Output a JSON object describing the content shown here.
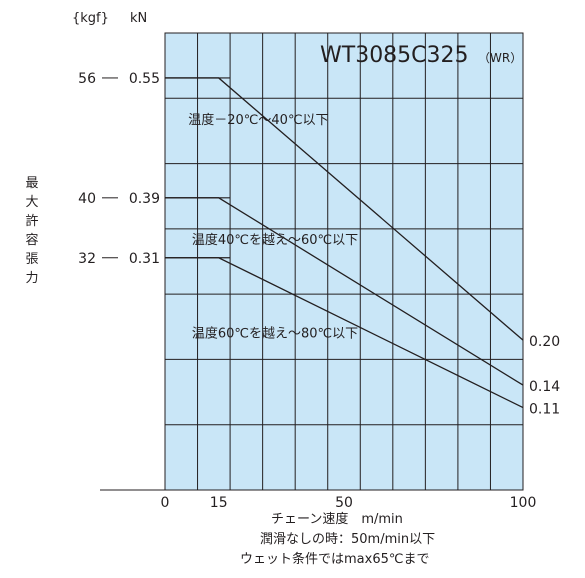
{
  "chart_data": {
    "type": "line",
    "title": "WT3085C325",
    "title_suffix": "（WR）",
    "xlabel": "チェーン速度　m/min",
    "ylabel": "最大許容張力",
    "y_unit_kgf": "{kgf}",
    "y_unit_kn": "kN",
    "xlim": [
      0,
      100
    ],
    "x_ticks": [
      "0",
      "15",
      "50",
      "100"
    ],
    "x_tick_values": [
      0,
      15,
      50,
      100
    ],
    "ylim": [
      0,
      0.61
    ],
    "y_ticks_kn": [
      {
        "value": 0.55,
        "label": "0.55",
        "kgf": "56"
      },
      {
        "value": 0.39,
        "label": "0.39",
        "kgf": "40"
      },
      {
        "value": 0.31,
        "label": "0.31",
        "kgf": "32"
      }
    ],
    "series": [
      {
        "name": "温度－20℃～40℃以下",
        "x": [
          0,
          15,
          100
        ],
        "y": [
          0.55,
          0.55,
          0.2
        ],
        "end_label": "0.20"
      },
      {
        "name": "温度40℃を越え～60℃以下",
        "x": [
          0,
          15,
          100
        ],
        "y": [
          0.39,
          0.39,
          0.14
        ],
        "end_label": "0.14"
      },
      {
        "name": "温度60℃を越え～80℃以下",
        "x": [
          0,
          15,
          100
        ],
        "y": [
          0.31,
          0.31,
          0.11
        ],
        "end_label": "0.11"
      }
    ],
    "notes": [
      "潤滑なしの時：50m/min以下",
      "ウェット条件ではmax65℃まで"
    ],
    "grid": true,
    "colors": {
      "plot_bg": "#c9e6f7",
      "line": "#231f20",
      "grid": "#231f20"
    }
  }
}
